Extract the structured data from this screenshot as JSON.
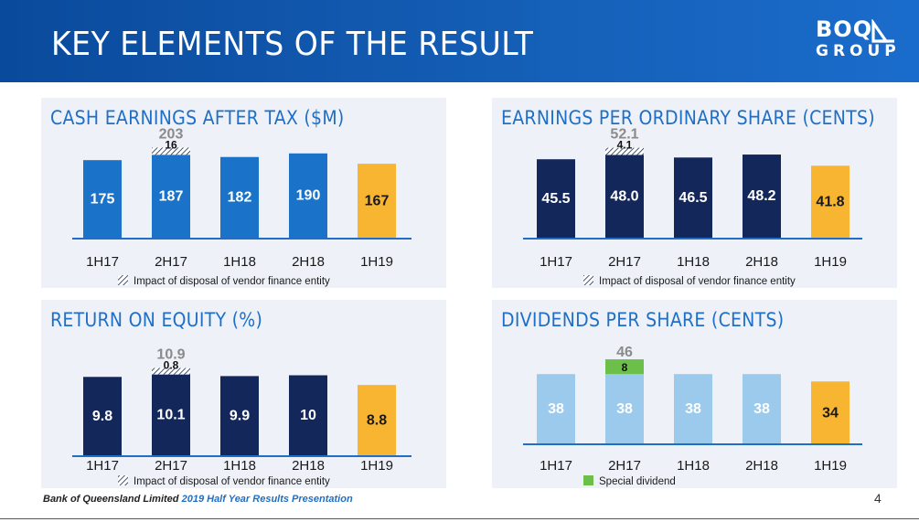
{
  "header": {
    "title": "KEY ELEMENTS OF THE RESULT",
    "logo_top": "BOQ",
    "logo_bottom": "GROUP"
  },
  "footer": {
    "brand": "Bank of Queensland Limited",
    "presentation": "2019 Half Year Results Presentation",
    "page": "4"
  },
  "colors": {
    "header_blue": "#0f56ad",
    "title_blue": "#1f6fc6",
    "mid_blue": "#1a73c8",
    "navy": "#14275a",
    "light_blue": "#9ccaed",
    "yellow": "#f8b531",
    "green": "#6cc04a",
    "panel_bg": "#eef2f8"
  },
  "chart_data": [
    {
      "type": "bar",
      "title": "CASH EARNINGS AFTER TAX ($M)",
      "categories": [
        "1H17",
        "2H17",
        "1H18",
        "2H18",
        "1H19"
      ],
      "values": [
        175,
        187,
        182,
        190,
        167
      ],
      "value_labels": [
        "175",
        "187",
        "182",
        "190",
        "167"
      ],
      "bar_colors": [
        "#1a73c8",
        "#1a73c8",
        "#1a73c8",
        "#1a73c8",
        "#f8b531"
      ],
      "stack": {
        "category": "2H17",
        "value": 16,
        "label": "16",
        "total_label": "203",
        "style": "hatched"
      },
      "legend": "Impact of disposal of vendor finance entity",
      "legend_style": "hatched",
      "ylim": [
        0,
        210
      ]
    },
    {
      "type": "bar",
      "title": "EARNINGS PER ORDINARY SHARE (CENTS)",
      "categories": [
        "1H17",
        "2H17",
        "1H18",
        "2H18",
        "1H19"
      ],
      "values": [
        45.5,
        48.0,
        46.5,
        48.2,
        41.8
      ],
      "value_labels": [
        "45.5",
        "48.0",
        "46.5",
        "48.2",
        "41.8"
      ],
      "bar_colors": [
        "#14275a",
        "#14275a",
        "#14275a",
        "#14275a",
        "#f8b531"
      ],
      "stack": {
        "category": "2H17",
        "value": 4.1,
        "label": "4.1",
        "total_label": "52.1",
        "style": "hatched"
      },
      "legend": "Impact of disposal of vendor finance entity",
      "legend_style": "hatched",
      "ylim": [
        0,
        54
      ]
    },
    {
      "type": "bar",
      "title": "RETURN ON EQUITY (%)",
      "categories": [
        "1H17",
        "2H17",
        "1H18",
        "2H18",
        "1H19"
      ],
      "values": [
        9.8,
        10.1,
        9.9,
        10,
        8.8
      ],
      "value_labels": [
        "9.8",
        "10.1",
        "9.9",
        "10",
        "8.8"
      ],
      "bar_colors": [
        "#14275a",
        "#14275a",
        "#14275a",
        "#14275a",
        "#f8b531"
      ],
      "stack": {
        "category": "2H17",
        "value": 0.8,
        "label": "0.8",
        "total_label": "10.9",
        "style": "hatched"
      },
      "legend": "Impact of disposal of vendor finance entity",
      "legend_style": "hatched",
      "ylim": [
        0,
        11.3
      ]
    },
    {
      "type": "bar",
      "title": "DIVIDENDS PER SHARE (CENTS)",
      "categories": [
        "1H17",
        "2H17",
        "1H18",
        "2H18",
        "1H19"
      ],
      "values": [
        38,
        38,
        38,
        38,
        34
      ],
      "value_labels": [
        "38",
        "38",
        "38",
        "38",
        "34"
      ],
      "bar_colors": [
        "#9ccaed",
        "#9ccaed",
        "#9ccaed",
        "#9ccaed",
        "#f8b531"
      ],
      "stack": {
        "category": "2H17",
        "value": 8,
        "label": "8",
        "total_label": "46",
        "style": "solid",
        "color": "#6cc04a"
      },
      "legend": "Special dividend",
      "legend_style": "solid",
      "ylim": [
        0,
        48
      ]
    }
  ]
}
